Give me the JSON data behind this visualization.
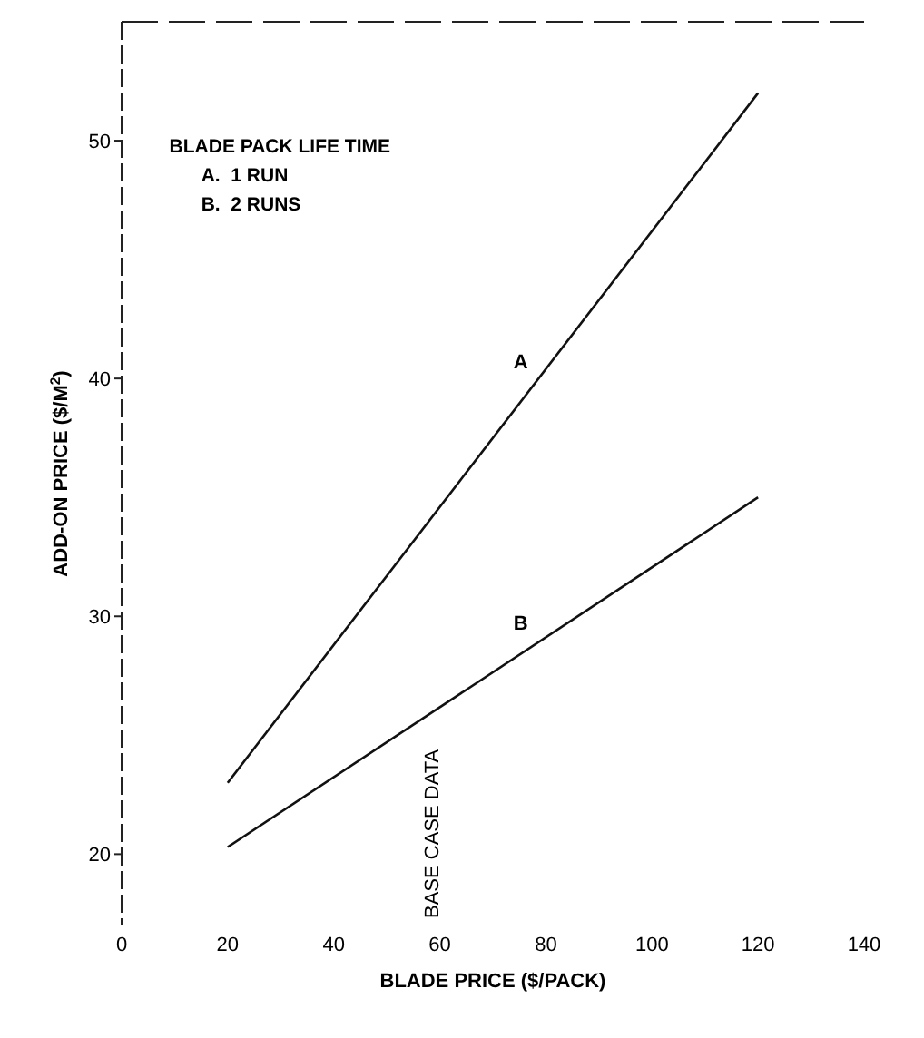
{
  "chart_data": {
    "type": "line",
    "xlabel": "BLADE PRICE ($/PACK)",
    "ylabel": "ADD-ON PRICE ($/M$^{2}$)",
    "legend_title": "BLADE PACK LIFE TIME",
    "x": [
      20,
      120
    ],
    "series": [
      {
        "name": "A",
        "color": "#111111",
        "values": [
          23,
          52
        ]
      },
      {
        "name": "B",
        "color": "#111111",
        "values": [
          20.3,
          35
        ]
      }
    ],
    "xlim": [
      0,
      140
    ],
    "xticks": [
      0,
      20,
      40,
      60,
      80,
      100,
      120,
      140
    ],
    "ylim": [
      17,
      55
    ],
    "yticks": [
      20,
      30,
      40,
      50
    ],
    "annotations": [
      "A.  1 RUN",
      "B.  2 RUNS",
      "BASE CASE DATA"
    ],
    "grid": false,
    "marker": "none",
    "line_style": "solid"
  }
}
